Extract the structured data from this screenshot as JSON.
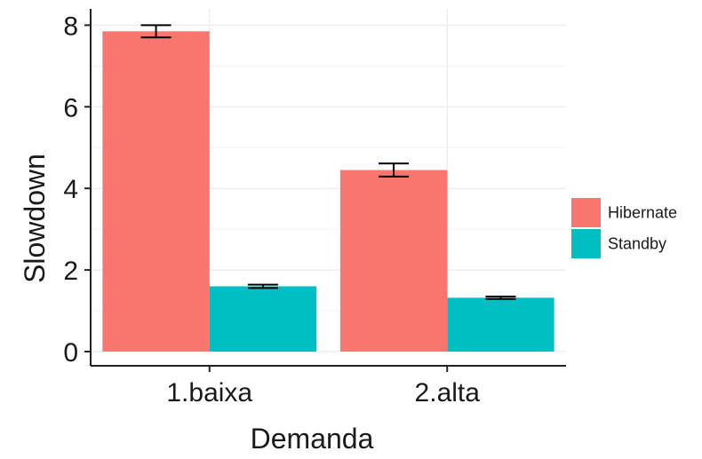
{
  "chart_data": {
    "type": "bar",
    "title": "",
    "xlabel": "Demanda",
    "ylabel": "Slowdown",
    "categories": [
      "1.baixa",
      "2.alta"
    ],
    "series": [
      {
        "name": "Hibernate",
        "color": "#F8766D",
        "values": [
          7.85,
          4.45
        ],
        "error": [
          0.15,
          0.16
        ]
      },
      {
        "name": "Standby",
        "color": "#00BFC4",
        "values": [
          1.6,
          1.32
        ],
        "error": [
          0.04,
          0.03
        ]
      }
    ],
    "ylim": [
      0,
      8.4
    ],
    "yticks": [
      0,
      2,
      4,
      6,
      8
    ],
    "grid": true,
    "legend": "right"
  }
}
